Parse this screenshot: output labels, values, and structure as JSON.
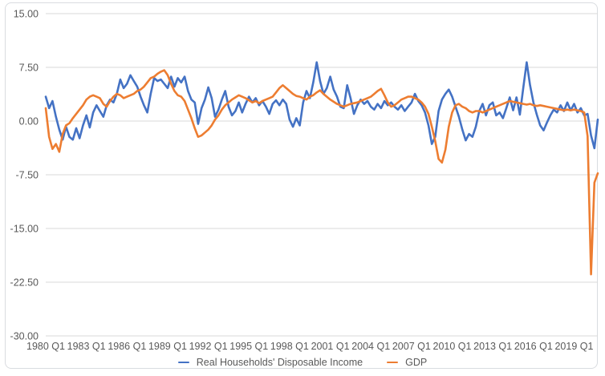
{
  "colors": {
    "background": "#FFFFFF",
    "card_border": "#D9DCE0",
    "grid": "#D9D9D9",
    "axis_text": "#595959",
    "rhdi_line": "#4472C4",
    "gdp_line": "#ED7D31"
  },
  "legend": {
    "position": "bottom-center",
    "items": [
      {
        "label": "Real Households' Disposable Income",
        "color": "#4472C4"
      },
      {
        "label": "GDP",
        "color": "#ED7D31"
      }
    ]
  },
  "chart_data": {
    "type": "line",
    "x_start": {
      "year": 1980,
      "quarter": 1
    },
    "x_step_quarters": 1,
    "n_points": 164,
    "x_end": {
      "year": 2020,
      "quarter": 4
    },
    "x_tick_labels": [
      "1980 Q1",
      "1983 Q1",
      "1986 Q1",
      "1989 Q1",
      "1992 Q1",
      "1995 Q1",
      "1998 Q1",
      "2001 Q1",
      "2004 Q1",
      "2007 Q1",
      "2010 Q1",
      "2013 Q1",
      "2016 Q1",
      "2019 Q1"
    ],
    "x_tick_point_indices": [
      0,
      12,
      24,
      36,
      48,
      60,
      72,
      84,
      96,
      108,
      120,
      132,
      144,
      156
    ],
    "y_ticks": [
      15,
      7.5,
      0,
      -7.5,
      -15,
      -22.5,
      -30
    ],
    "y_tick_labels": [
      "15.00",
      "7.50",
      "0.00",
      "-7.50",
      "-15.00",
      "-22.50",
      "-30.00"
    ],
    "ylim": [
      -30,
      15
    ],
    "grid": "horizontal",
    "legend_position": "bottom",
    "series": [
      {
        "name": "Real Households' Disposable Income",
        "color": "#4472C4",
        "values": [
          3.4,
          1.8,
          2.8,
          0.6,
          -1.2,
          -2.6,
          -0.8,
          -2.2,
          -2.6,
          -1.0,
          -2.4,
          -0.6,
          0.8,
          -0.9,
          1.2,
          2.2,
          1.4,
          0.6,
          2.2,
          3.0,
          2.6,
          3.8,
          5.8,
          4.6,
          5.2,
          6.4,
          5.6,
          4.8,
          3.4,
          2.2,
          1.2,
          3.8,
          6.0,
          5.6,
          5.8,
          5.2,
          4.6,
          6.2,
          4.8,
          6.0,
          5.4,
          6.2,
          4.2,
          3.0,
          2.6,
          -0.4,
          1.8,
          3.0,
          4.7,
          3.2,
          0.6,
          1.6,
          3.0,
          4.2,
          2.0,
          0.8,
          1.4,
          2.6,
          1.2,
          2.4,
          3.4,
          2.6,
          3.2,
          2.2,
          2.8,
          2.0,
          1.0,
          2.4,
          2.9,
          2.2,
          3.0,
          2.4,
          0.2,
          -0.8,
          0.4,
          -0.6,
          2.6,
          4.2,
          3.2,
          5.4,
          8.2,
          5.6,
          3.8,
          4.6,
          6.2,
          4.4,
          3.4,
          2.0,
          1.8,
          5.0,
          3.2,
          1.0,
          2.2,
          3.0,
          2.4,
          2.8,
          2.0,
          1.6,
          2.4,
          1.8,
          2.8,
          2.2,
          2.6,
          2.0,
          1.6,
          2.2,
          1.4,
          2.0,
          2.6,
          3.8,
          2.8,
          2.2,
          1.2,
          -0.6,
          -3.2,
          -2.2,
          1.4,
          3.0,
          3.8,
          4.4,
          3.4,
          2.0,
          0.6,
          -1.2,
          -2.7,
          -1.8,
          -2.2,
          -0.8,
          1.4,
          2.4,
          0.8,
          2.2,
          2.6,
          0.8,
          1.2,
          0.4,
          1.8,
          3.3,
          1.5,
          3.3,
          0.9,
          4.6,
          8.2,
          5.0,
          2.6,
          0.9,
          -0.6,
          -1.3,
          -0.2,
          0.8,
          1.6,
          1.2,
          2.2,
          1.4,
          2.6,
          1.5,
          2.4,
          1.2,
          1.8,
          0.8,
          1.0,
          -2.0,
          -3.8,
          0.2
        ]
      },
      {
        "name": "GDP",
        "color": "#ED7D31",
        "values": [
          1.8,
          -2.2,
          -3.9,
          -3.2,
          -4.3,
          -1.8,
          -0.6,
          -0.3,
          0.4,
          1.0,
          1.6,
          2.2,
          3.0,
          3.4,
          3.6,
          3.4,
          3.2,
          2.4,
          2.0,
          2.8,
          3.4,
          3.8,
          3.6,
          3.2,
          3.4,
          3.6,
          3.8,
          4.2,
          4.4,
          4.8,
          5.4,
          6.0,
          6.2,
          6.6,
          6.9,
          7.1,
          6.4,
          5.2,
          4.2,
          3.6,
          3.4,
          2.8,
          1.6,
          0.4,
          -1.0,
          -2.2,
          -2.0,
          -1.6,
          -1.2,
          -0.6,
          0.2,
          0.8,
          1.6,
          2.2,
          2.6,
          3.0,
          3.3,
          3.6,
          3.4,
          3.2,
          2.9,
          2.6,
          2.8,
          2.5,
          2.8,
          3.0,
          3.2,
          3.4,
          4.0,
          4.6,
          5.0,
          4.6,
          4.2,
          3.8,
          3.5,
          3.4,
          3.2,
          3.0,
          3.4,
          3.6,
          4.0,
          4.3,
          3.8,
          3.4,
          3.0,
          2.7,
          2.4,
          2.2,
          2.0,
          2.2,
          2.4,
          2.5,
          2.6,
          2.8,
          3.0,
          3.2,
          3.4,
          3.8,
          4.2,
          4.5,
          3.6,
          2.6,
          2.0,
          2.2,
          2.6,
          3.0,
          3.2,
          3.4,
          3.4,
          3.2,
          3.0,
          2.6,
          2.0,
          1.0,
          -0.8,
          -2.8,
          -5.3,
          -5.8,
          -4.0,
          -0.8,
          1.2,
          2.2,
          2.4,
          2.0,
          1.8,
          1.4,
          1.2,
          1.4,
          1.4,
          1.2,
          1.4,
          1.6,
          1.8,
          2.0,
          2.2,
          2.4,
          2.6,
          2.8,
          2.7,
          2.6,
          2.5,
          2.4,
          2.3,
          2.4,
          2.2,
          2.1,
          2.2,
          2.1,
          2.0,
          1.9,
          1.8,
          1.7,
          1.6,
          1.5,
          1.6,
          1.5,
          1.6,
          1.5,
          1.4,
          1.2,
          -2.1,
          -21.4,
          -8.6,
          -7.3
        ]
      }
    ]
  }
}
